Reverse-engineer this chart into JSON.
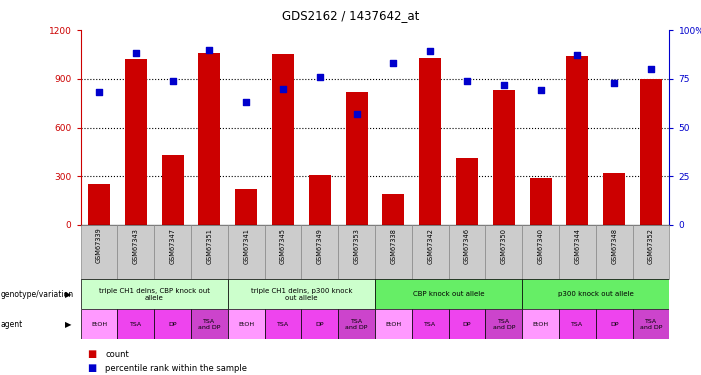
{
  "title": "GDS2162 / 1437642_at",
  "samples": [
    "GSM67339",
    "GSM67343",
    "GSM67347",
    "GSM67351",
    "GSM67341",
    "GSM67345",
    "GSM67349",
    "GSM67353",
    "GSM67338",
    "GSM67342",
    "GSM67346",
    "GSM67350",
    "GSM67340",
    "GSM67344",
    "GSM67348",
    "GSM67352"
  ],
  "counts": [
    250,
    1020,
    430,
    1060,
    220,
    1050,
    310,
    820,
    190,
    1030,
    410,
    830,
    290,
    1040,
    320,
    900
  ],
  "percentiles": [
    68,
    88,
    74,
    90,
    63,
    70,
    76,
    57,
    83,
    89,
    74,
    72,
    69,
    87,
    73,
    80
  ],
  "ylim_left": [
    0,
    1200
  ],
  "ylim_right": [
    0,
    100
  ],
  "yticks_left": [
    0,
    300,
    600,
    900,
    1200
  ],
  "yticks_right": [
    0,
    25,
    50,
    75,
    100
  ],
  "bar_color": "#cc0000",
  "dot_color": "#0000cc",
  "bg_color": "#ffffff",
  "plot_bg": "#ffffff",
  "sample_bg": "#cccccc",
  "genotype_groups": [
    {
      "label": "triple CH1 delns, CBP knock out\nallele",
      "start": 0,
      "end": 4,
      "color": "#ccffcc"
    },
    {
      "label": "triple CH1 delns, p300 knock\nout allele",
      "start": 4,
      "end": 8,
      "color": "#ccffcc"
    },
    {
      "label": "CBP knock out allele",
      "start": 8,
      "end": 12,
      "color": "#66ee66"
    },
    {
      "label": "p300 knock out allele",
      "start": 12,
      "end": 16,
      "color": "#66ee66"
    }
  ],
  "agent_labels": [
    "EtOH",
    "TSA",
    "DP",
    "TSA\nand DP",
    "EtOH",
    "TSA",
    "DP",
    "TSA\nand DP",
    "EtOH",
    "TSA",
    "DP",
    "TSA\nand DP",
    "EtOH",
    "TSA",
    "DP",
    "TSA\nand DP"
  ],
  "agent_colors": [
    "#ff99ff",
    "#ee44ee",
    "#ee44ee",
    "#cc44cc",
    "#ff99ff",
    "#ee44ee",
    "#ee44ee",
    "#cc44cc",
    "#ff99ff",
    "#ee44ee",
    "#ee44ee",
    "#cc44cc",
    "#ff99ff",
    "#ee44ee",
    "#ee44ee",
    "#cc44cc"
  ],
  "genotype_label": "genotype/variation",
  "agent_label": "agent",
  "legend_count_label": "count",
  "legend_pct_label": "percentile rank within the sample"
}
